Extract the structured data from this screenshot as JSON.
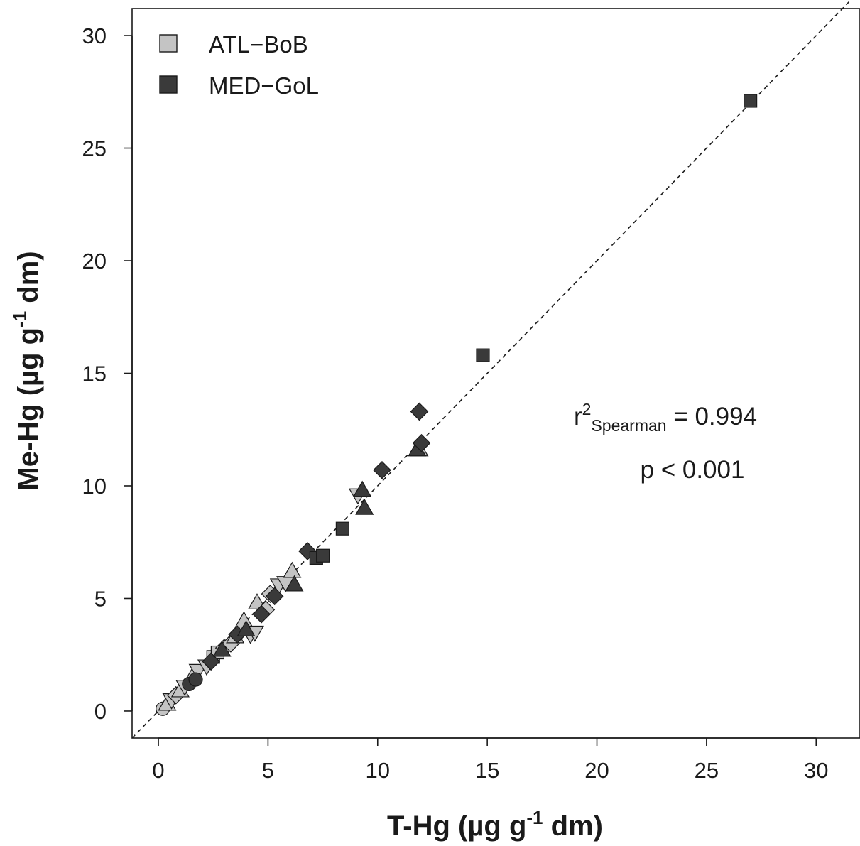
{
  "chart_data": {
    "type": "scatter",
    "xlabel": {
      "main": "T-Hg (µg g",
      "sup": "-1",
      "after": " dm)"
    },
    "ylabel": {
      "main": "Me-Hg (µg g",
      "sup": "-1",
      "after": " dm)"
    },
    "xlim": [
      -1.2,
      32.0
    ],
    "ylim": [
      -1.2,
      31.2
    ],
    "x_ticks": [
      0,
      5,
      10,
      15,
      20,
      25,
      30
    ],
    "y_ticks": [
      0,
      5,
      10,
      15,
      20,
      25,
      30
    ],
    "x_tick_labels": [
      "0",
      "5",
      "10",
      "15",
      "20",
      "25",
      "30"
    ],
    "y_tick_labels": [
      "0",
      "5",
      "10",
      "15",
      "20",
      "25",
      "30"
    ],
    "grid": false,
    "reference_line": {
      "type": "identity",
      "style": "dashed",
      "from": [
        -1.2,
        -1.2
      ],
      "to": [
        32.0,
        32.0
      ]
    },
    "legend": {
      "position": "top-left",
      "entries": [
        {
          "label": "ATL−BoB",
          "color": "#c4c4c4"
        },
        {
          "label": "MED−GoL",
          "color": "#3a3a3a"
        }
      ]
    },
    "annotation": {
      "r_base": "r",
      "r_sup": "2",
      "r_sub": "Spearman",
      "r_value": " = 0.994",
      "p_text": "p < 0.001"
    },
    "series": [
      {
        "name": "ATL−BoB",
        "color": "#c4c4c4",
        "points": [
          {
            "x": 0.2,
            "y": 0.1,
            "shape": "circle"
          },
          {
            "x": 0.4,
            "y": 0.3,
            "shape": "triangle-up"
          },
          {
            "x": 0.6,
            "y": 0.5,
            "shape": "triangle-down"
          },
          {
            "x": 0.8,
            "y": 0.7,
            "shape": "diamond"
          },
          {
            "x": 1.0,
            "y": 0.9,
            "shape": "triangle-up"
          },
          {
            "x": 1.2,
            "y": 1.1,
            "shape": "triangle-down"
          },
          {
            "x": 1.6,
            "y": 1.6,
            "shape": "triangle-up"
          },
          {
            "x": 1.8,
            "y": 1.8,
            "shape": "triangle-down"
          },
          {
            "x": 2.2,
            "y": 2.0,
            "shape": "triangle-down"
          },
          {
            "x": 2.5,
            "y": 2.4,
            "shape": "square"
          },
          {
            "x": 2.7,
            "y": 2.6,
            "shape": "square"
          },
          {
            "x": 3.0,
            "y": 2.8,
            "shape": "diamond"
          },
          {
            "x": 3.3,
            "y": 3.0,
            "shape": "diamond"
          },
          {
            "x": 3.5,
            "y": 3.3,
            "shape": "triangle-up"
          },
          {
            "x": 3.9,
            "y": 4.0,
            "shape": "triangle-up"
          },
          {
            "x": 4.2,
            "y": 3.4,
            "shape": "triangle-down"
          },
          {
            "x": 4.4,
            "y": 3.5,
            "shape": "triangle-down"
          },
          {
            "x": 4.5,
            "y": 4.8,
            "shape": "triangle-up"
          },
          {
            "x": 4.9,
            "y": 4.5,
            "shape": "diamond"
          },
          {
            "x": 5.1,
            "y": 5.2,
            "shape": "diamond"
          },
          {
            "x": 5.5,
            "y": 5.6,
            "shape": "triangle-down"
          },
          {
            "x": 5.8,
            "y": 5.7,
            "shape": "triangle-down"
          },
          {
            "x": 6.1,
            "y": 6.2,
            "shape": "triangle-up"
          },
          {
            "x": 9.1,
            "y": 9.6,
            "shape": "triangle-down"
          },
          {
            "x": 11.9,
            "y": 11.6,
            "shape": "triangle-up"
          }
        ]
      },
      {
        "name": "MED−GoL",
        "color": "#3a3a3a",
        "points": [
          {
            "x": 1.4,
            "y": 1.2,
            "shape": "circle"
          },
          {
            "x": 1.7,
            "y": 1.4,
            "shape": "circle"
          },
          {
            "x": 2.4,
            "y": 2.2,
            "shape": "diamond"
          },
          {
            "x": 2.9,
            "y": 2.7,
            "shape": "triangle-up"
          },
          {
            "x": 3.6,
            "y": 3.4,
            "shape": "diamond"
          },
          {
            "x": 4.0,
            "y": 3.6,
            "shape": "triangle-up"
          },
          {
            "x": 4.7,
            "y": 4.3,
            "shape": "diamond"
          },
          {
            "x": 5.3,
            "y": 5.1,
            "shape": "diamond"
          },
          {
            "x": 6.2,
            "y": 5.6,
            "shape": "triangle-up"
          },
          {
            "x": 6.8,
            "y": 7.1,
            "shape": "diamond"
          },
          {
            "x": 7.2,
            "y": 6.8,
            "shape": "square"
          },
          {
            "x": 7.5,
            "y": 6.9,
            "shape": "square"
          },
          {
            "x": 8.4,
            "y": 8.1,
            "shape": "square"
          },
          {
            "x": 9.4,
            "y": 9.0,
            "shape": "triangle-up"
          },
          {
            "x": 9.3,
            "y": 9.8,
            "shape": "triangle-up"
          },
          {
            "x": 10.2,
            "y": 10.7,
            "shape": "diamond"
          },
          {
            "x": 11.8,
            "y": 11.6,
            "shape": "triangle-up"
          },
          {
            "x": 12.0,
            "y": 11.9,
            "shape": "diamond"
          },
          {
            "x": 11.9,
            "y": 13.3,
            "shape": "diamond"
          },
          {
            "x": 14.8,
            "y": 15.8,
            "shape": "square"
          },
          {
            "x": 27.0,
            "y": 27.1,
            "shape": "square"
          }
        ]
      }
    ]
  }
}
